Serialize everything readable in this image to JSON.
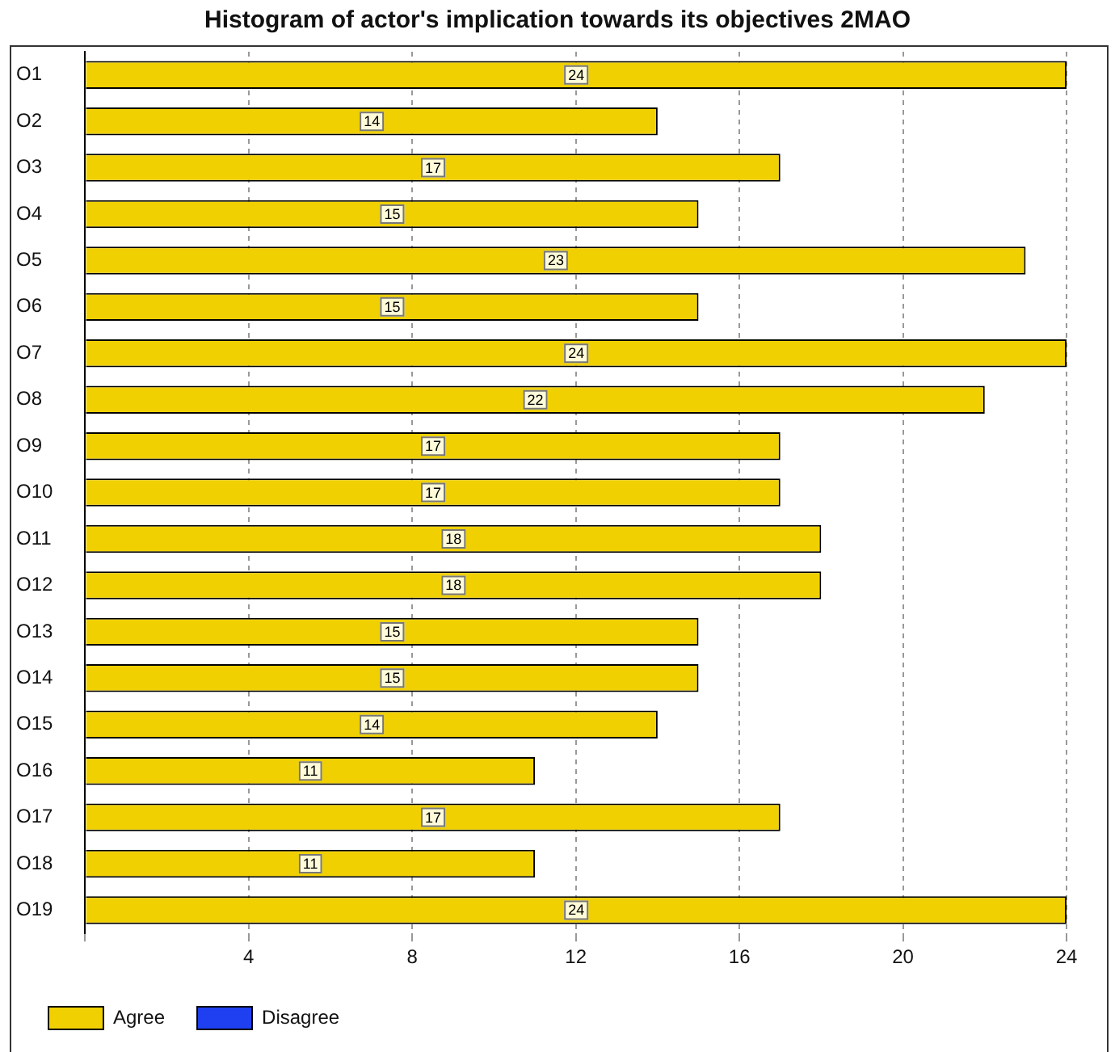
{
  "chart_data": {
    "type": "bar",
    "orientation": "horizontal",
    "stacked": true,
    "title": "Histogram of actor's implication towards its objectives 2MAO",
    "categories": [
      "O1",
      "O2",
      "O3",
      "O4",
      "O5",
      "O6",
      "O7",
      "O8",
      "O9",
      "O10",
      "O11",
      "O12",
      "O13",
      "O14",
      "O15",
      "O16",
      "O17",
      "O18",
      "O19"
    ],
    "series": [
      {
        "name": "Agree",
        "color": "#f0d000",
        "values": [
          24,
          14,
          17,
          15,
          23,
          15,
          24,
          22,
          17,
          17,
          18,
          18,
          15,
          15,
          14,
          11,
          17,
          11,
          24
        ],
        "value_labels": [
          "24",
          "14",
          "17",
          "15",
          "23",
          "15",
          "24",
          "22",
          "17",
          "17",
          "18",
          "18",
          "15",
          "15",
          "14",
          "11",
          "17",
          "11",
          "24"
        ]
      },
      {
        "name": "Disagree",
        "color": "#1e40f0",
        "values": [
          0,
          0,
          0,
          0,
          0,
          0,
          0,
          0,
          0,
          0,
          0,
          0,
          0,
          0,
          0,
          0,
          0,
          0,
          0
        ],
        "value_labels": [
          null,
          null,
          null,
          null,
          null,
          null,
          null,
          null,
          null,
          null,
          null,
          null,
          null,
          null,
          null,
          null,
          null,
          null,
          null
        ]
      }
    ],
    "xlim": [
      0,
      24
    ],
    "xticks": [
      {
        "value": 0,
        "label": null
      },
      4,
      8,
      12,
      16,
      20,
      24
    ],
    "grid": "x",
    "legend": "bottom left"
  }
}
